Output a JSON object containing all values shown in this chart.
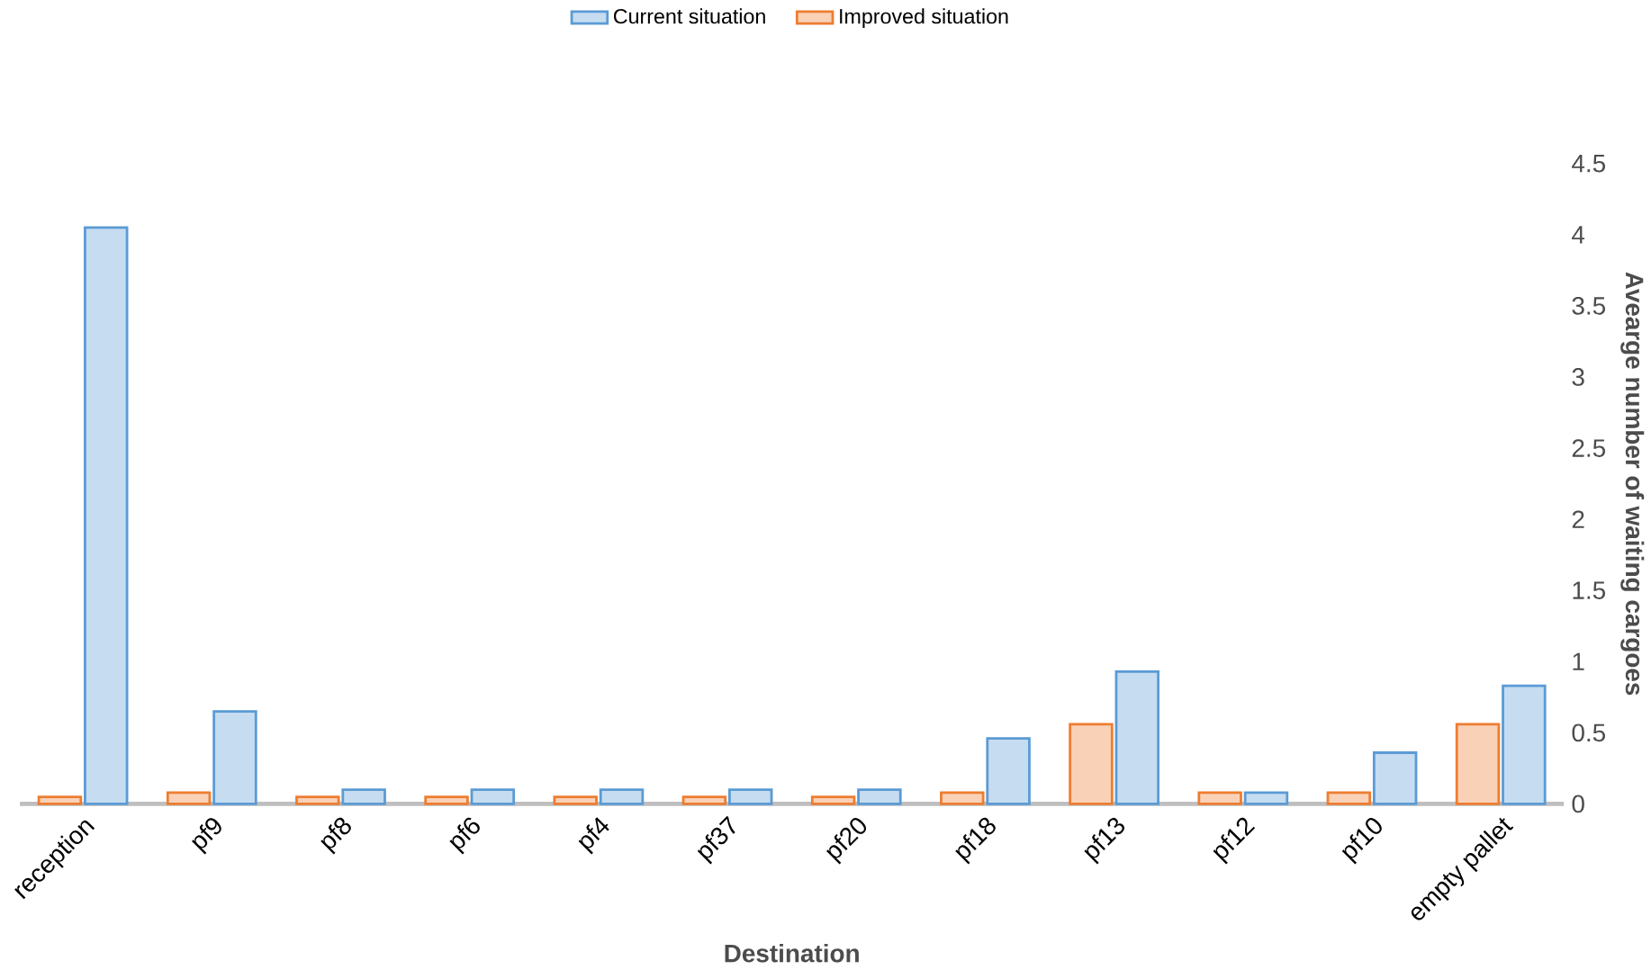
{
  "chart_data": {
    "type": "bar",
    "xlabel": "Destination",
    "ylabel": "Avearge number of waiting cargoes",
    "categories": [
      "reception",
      "pf9",
      "pf8",
      "pf6",
      "pf4",
      "pf37",
      "pf20",
      "pf18",
      "pf13",
      "pf12",
      "pf10",
      "empty pallet"
    ],
    "series": [
      {
        "name": "Current situation",
        "color": "#5b9bd5",
        "values": [
          4.05,
          0.65,
          0.1,
          0.1,
          0.1,
          0.1,
          0.1,
          0.46,
          0.93,
          0.08,
          0.36,
          0.83
        ]
      },
      {
        "name": "Improved situation",
        "color": "#ed7d31",
        "values": [
          0.05,
          0.08,
          0.05,
          0.05,
          0.05,
          0.05,
          0.05,
          0.08,
          0.56,
          0.08,
          0.08,
          0.56
        ]
      }
    ],
    "ylim": [
      0,
      4.5
    ],
    "yticks": [
      0,
      0.5,
      1,
      1.5,
      2,
      2.5,
      3,
      3.5,
      4,
      4.5
    ],
    "grid": false,
    "legend": "top"
  }
}
